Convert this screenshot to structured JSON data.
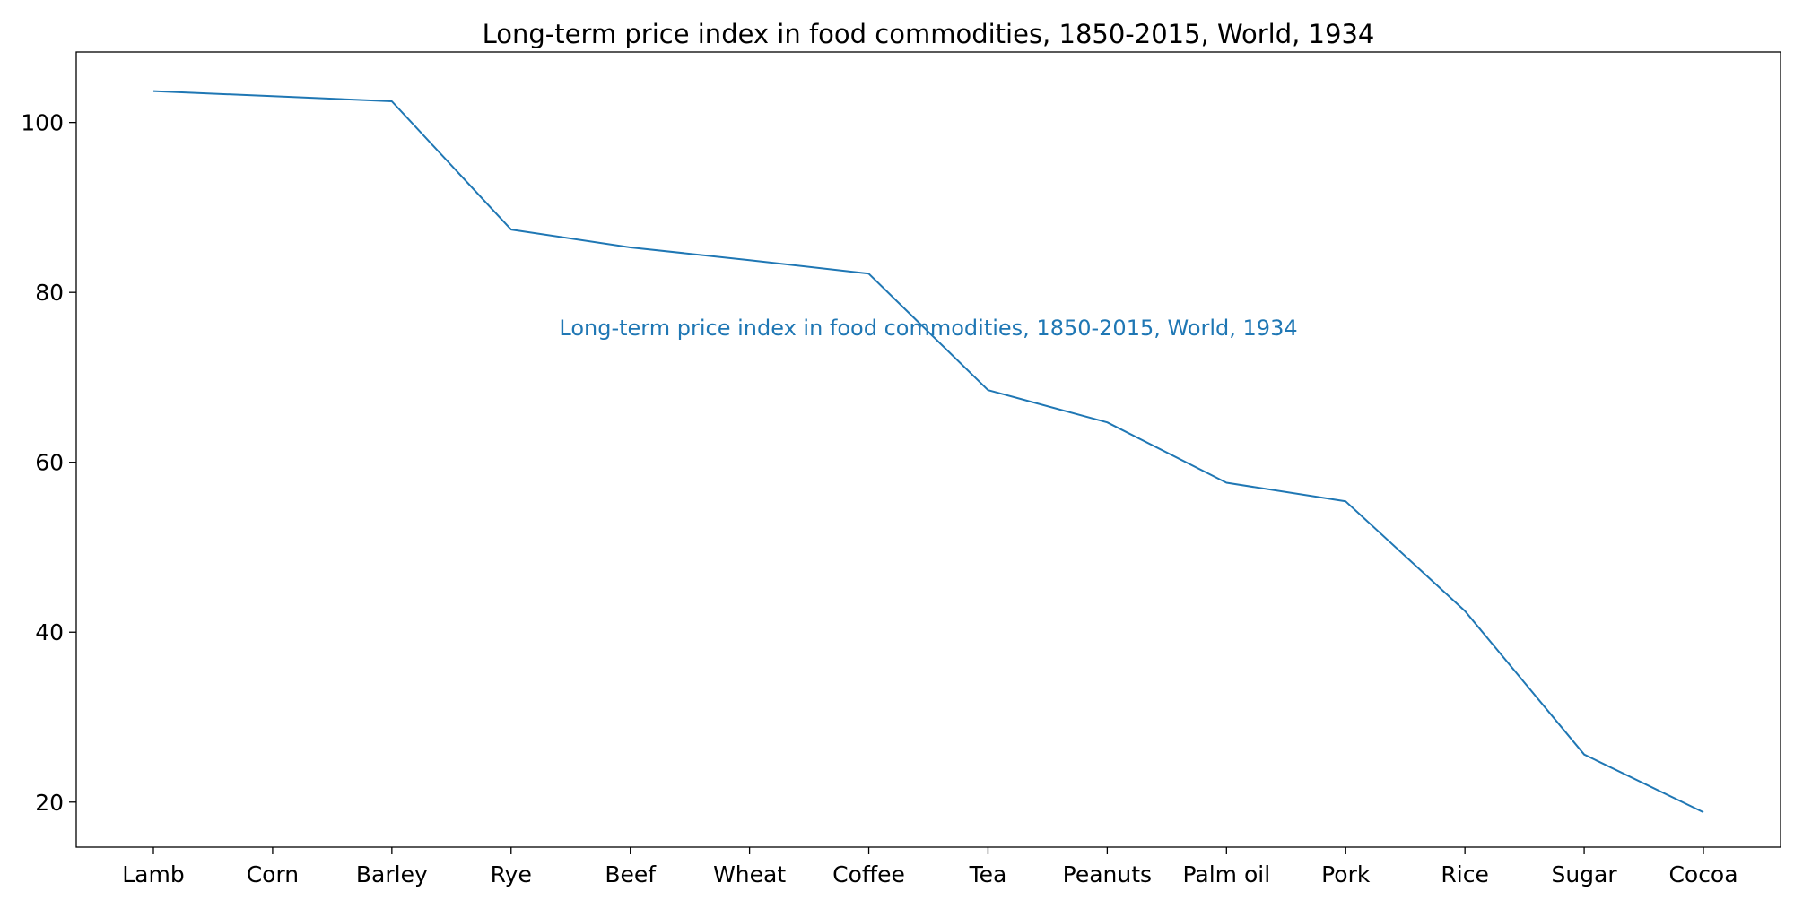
{
  "chart_data": {
    "type": "line",
    "title": "Long-term price index in food commodities, 1850-2015, World, 1934",
    "xlabel": "",
    "ylabel": "",
    "categories": [
      "Lamb",
      "Corn",
      "Barley",
      "Rye",
      "Beef",
      "Wheat",
      "Coffee",
      "Tea",
      "Peanuts",
      "Palm oil",
      "Pork",
      "Rice",
      "Sugar",
      "Cocoa"
    ],
    "series": [
      {
        "values": [
          103.7,
          103.1,
          102.5,
          87.4,
          85.3,
          83.8,
          82.2,
          68.5,
          64.7,
          57.6,
          55.4,
          42.5,
          25.6,
          18.8
        ]
      }
    ],
    "ylim": [
      14.7,
      108.3
    ],
    "yticks": [
      20,
      40,
      60,
      80,
      100
    ],
    "annotation": "Long-term price index in food commodities, 1850-2015, World, 1934",
    "grid": false,
    "line_color": "#1f77b4"
  }
}
